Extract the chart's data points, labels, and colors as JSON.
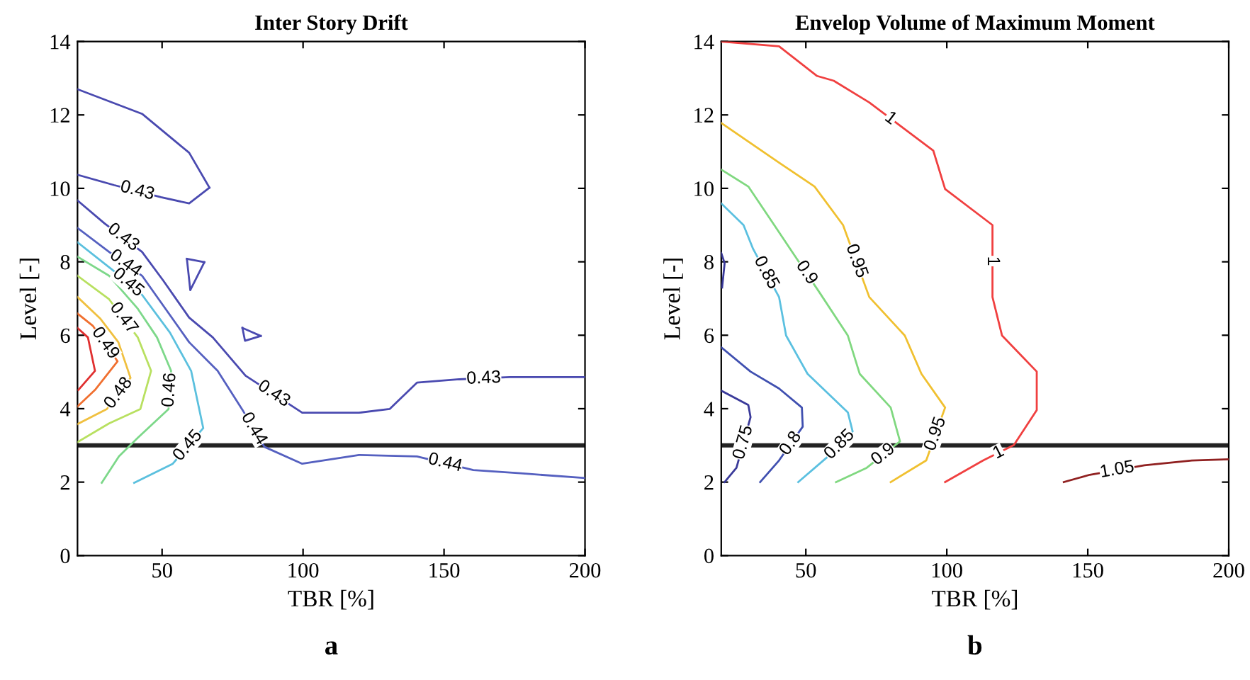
{
  "chart_data": [
    {
      "type": "line",
      "title": "Inter Story Drift",
      "xlabel": "TBR [%]",
      "ylabel": "Level [-]",
      "xlim": [
        20,
        200
      ],
      "xticks": [
        50,
        100,
        150,
        200
      ],
      "ylim": [
        0,
        14
      ],
      "yticks": [
        0,
        2,
        4,
        6,
        8,
        10,
        12,
        14
      ],
      "grid": false,
      "legend": false,
      "series": [
        {
          "color": "#4a4ab0",
          "x": [
            20,
            42.9,
            59.6,
            66.8
          ],
          "values": [
            12.7,
            12.03,
            10.97,
            10.02
          ]
        },
        {
          "color": "#4a4ab0",
          "x": [
            20,
            32.9,
            49.6,
            59.6,
            66.8
          ],
          "values": [
            10.37,
            10.09,
            9.76,
            9.59,
            10.02
          ]
        },
        {
          "color": "#4a4ab0",
          "x": [
            58.8,
            65
          ],
          "values": [
            8.08,
            7.99
          ]
        },
        {
          "color": "#4a4ab0",
          "x": [
            58.8,
            60,
            65
          ],
          "values": [
            8.08,
            7.23,
            7.99
          ]
        },
        {
          "color": "#4a4ab0",
          "x": [
            78.5,
            85
          ],
          "values": [
            6.2,
            5.98
          ]
        },
        {
          "color": "#4a4ab0",
          "x": [
            78.5,
            79.4,
            85
          ],
          "values": [
            6.2,
            5.85,
            5.98
          ]
        },
        {
          "color": "#4a4ab0",
          "x": [
            20,
            29.5,
            42.9,
            50.4,
            59.6,
            68,
            79.6,
            99.7,
            119.8,
            130.7,
            140.4,
            155.4,
            173.3,
            200
          ],
          "values": [
            9.67,
            9.05,
            8.27,
            7.49,
            6.48,
            5.94,
            4.9,
            3.89,
            3.89,
            3.99,
            4.71,
            4.8,
            4.86,
            4.86
          ]
        },
        {
          "color": "#5560c0",
          "x": [
            20,
            31.2,
            42.9,
            59.6,
            69.7,
            78.8,
            86.3,
            99.7,
            119.8,
            140.4,
            160.4,
            177.1,
            200
          ],
          "values": [
            8.92,
            8.27,
            7.62,
            5.81,
            5.03,
            3.93,
            2.96,
            2.5,
            2.74,
            2.7,
            2.33,
            2.24,
            2.11
          ]
        },
        {
          "color": "#5bc0de",
          "x": [
            20,
            32.9,
            42.9,
            52.8,
            60.3,
            64.6,
            53.8,
            40.1
          ],
          "values": [
            8.53,
            7.75,
            7.1,
            6.07,
            5.03,
            3.47,
            2.5,
            1.98
          ]
        },
        {
          "color": "#7dd88a",
          "x": [
            20,
            31.2,
            41.4,
            48.2,
            53.2,
            52.3,
            41.4,
            34.7,
            28.6
          ],
          "values": [
            8.14,
            7.62,
            6.72,
            5.94,
            5.03,
            3.99,
            3.21,
            2.7,
            1.98
          ]
        },
        {
          "color": "#b8e060",
          "x": [
            20,
            31.2,
            41.4,
            46.1,
            42.3,
            31.2,
            20
          ],
          "values": [
            7.62,
            6.98,
            5.94,
            5.03,
            3.99,
            3.6,
            3.09
          ]
        },
        {
          "color": "#f0c040",
          "x": [
            20,
            28,
            34.5,
            38.8,
            30.4,
            20
          ],
          "values": [
            7.04,
            6.46,
            5.81,
            4.84,
            3.99,
            3.58
          ]
        },
        {
          "color": "#f07030",
          "x": [
            20,
            25.4,
            34.2,
            26.2,
            20
          ],
          "values": [
            6.59,
            6.26,
            5.29,
            4.51,
            4.06
          ]
        },
        {
          "color": "#e03030",
          "x": [
            20,
            23.7,
            26.2,
            20.3
          ],
          "values": [
            6.2,
            5.94,
            5.03,
            4.51
          ]
        }
      ],
      "ref_lines": [
        {
          "axis": "y",
          "value": 3,
          "color": "#222222"
        }
      ],
      "annotations": [
        {
          "text": "0.43",
          "x": 41.2,
          "y": 9.93
        },
        {
          "text": "0.43",
          "x": 36.2,
          "y": 8.66
        },
        {
          "text": "0.44",
          "x": 37,
          "y": 7.95
        },
        {
          "text": "0.45",
          "x": 37.9,
          "y": 7.43
        },
        {
          "text": "0.46",
          "x": 52.75,
          "y": 4.51
        },
        {
          "text": "0.47",
          "x": 36.3,
          "y": 6.46
        },
        {
          "text": "0.48",
          "x": 34.6,
          "y": 4.42
        },
        {
          "text": "0.49",
          "x": 29.8,
          "y": 5.78
        },
        {
          "text": "0.43",
          "x": 89.6,
          "y": 4.4
        },
        {
          "text": "0.43",
          "x": 164.1,
          "y": 4.82
        },
        {
          "text": "0.44",
          "x": 82.5,
          "y": 3.45
        },
        {
          "text": "0.44",
          "x": 150.4,
          "y": 2.52
        },
        {
          "text": "0.45",
          "x": 59.2,
          "y": 2.99
        },
        "a"
      ]
    },
    {
      "type": "line",
      "title": "Envelop Volume of Maximum Moment",
      "xlabel": "TBR [%]",
      "ylabel": "Level [-]",
      "xlim": [
        20,
        200
      ],
      "xticks": [
        50,
        100,
        150,
        200
      ],
      "ylim": [
        0,
        14
      ],
      "yticks": [
        0,
        2,
        4,
        6,
        8,
        10,
        12,
        14
      ],
      "grid": false,
      "legend": false,
      "series": [
        {
          "color": "#f04040",
          "x": [
            20,
            40.5,
            54,
            59.9,
            72.5,
            95.2,
            99.4,
            116.2,
            116.2,
            119.6,
            131.9,
            131.9,
            123.8,
            112.9,
            99.4
          ],
          "values": [
            14,
            13.87,
            13.06,
            12.93,
            12.34,
            11.03,
            9.98,
            9.0,
            7.04,
            5.99,
            5.01,
            3.96,
            3.01,
            2.59,
            2.0
          ]
        },
        {
          "color": "#f0c030",
          "x": [
            20,
            40.5,
            53.1,
            63.2,
            72.5,
            85.1,
            91,
            99.4,
            92.7,
            80.1
          ],
          "values": [
            11.78,
            10.7,
            10.05,
            9.0,
            7.04,
            5.99,
            4.95,
            4.03,
            2.59,
            2.0
          ]
        },
        {
          "color": "#80d880",
          "x": [
            20,
            29.6,
            38.8,
            45.6,
            54.8,
            64.9,
            69.1,
            80.1,
            83.4,
            71.6,
            60.7
          ],
          "values": [
            10.51,
            10.05,
            9.0,
            8.22,
            7.17,
            5.99,
            4.95,
            4.03,
            3.11,
            2.39,
            2.0
          ]
        },
        {
          "color": "#5bc0e0",
          "x": [
            20,
            27.9,
            31.3,
            40.5,
            43,
            50.6,
            64.9,
            66.6,
            57.3,
            47.3
          ],
          "values": [
            9.59,
            9.0,
            8.35,
            7.04,
            5.99,
            4.95,
            3.9,
            3.38,
            2.66,
            2.0
          ]
        },
        {
          "color": "#3a3a9a",
          "x": [
            20,
            21.2,
            20.3
          ],
          "values": [
            8.24,
            7.96,
            7.3
          ]
        },
        {
          "color": "#4050b0",
          "x": [
            20,
            30.4,
            40.5,
            48.6,
            48.9,
            40.5,
            33.8
          ],
          "values": [
            5.67,
            5.01,
            4.55,
            4.03,
            3.51,
            2.59,
            2.0
          ]
        },
        {
          "color": "#3a3a9a",
          "x": [
            20,
            29.6,
            30.4,
            25.4,
            21.2
          ],
          "values": [
            4.49,
            4.1,
            3.77,
            2.39,
            2.0
          ]
        },
        {
          "color": "#902020",
          "x": [
            141.5,
            150.7,
            170.1,
            186.9,
            200
          ],
          "values": [
            2.0,
            2.2,
            2.46,
            2.59,
            2.62
          ]
        }
      ],
      "ref_lines": [
        {
          "axis": "y",
          "value": 3,
          "color": "#222222"
        }
      ],
      "annotations": [
        {
          "text": "1",
          "x": 80,
          "y": 11.9
        },
        {
          "text": "1",
          "x": 116.2,
          "y": 8.02
        },
        {
          "text": "1",
          "x": 118.4,
          "y": 2.8
        },
        {
          "text": "0.95",
          "x": 67.9,
          "y": 8.02
        },
        {
          "text": "0.95",
          "x": 96.05,
          "y": 3.31
        },
        {
          "text": "0.9",
          "x": 50.2,
          "y": 7.7
        },
        {
          "text": "0.9",
          "x": 77.5,
          "y": 2.75
        },
        {
          "text": "0.85",
          "x": 35.9,
          "y": 7.7
        },
        {
          "text": "0.85",
          "x": 62,
          "y": 3.02
        },
        {
          "text": "0.8",
          "x": 44.7,
          "y": 3.05
        },
        {
          "text": "0.75",
          "x": 27.9,
          "y": 3.08
        },
        {
          "text": "1.05",
          "x": 160.4,
          "y": 2.33
        },
        "b"
      ]
    }
  ]
}
